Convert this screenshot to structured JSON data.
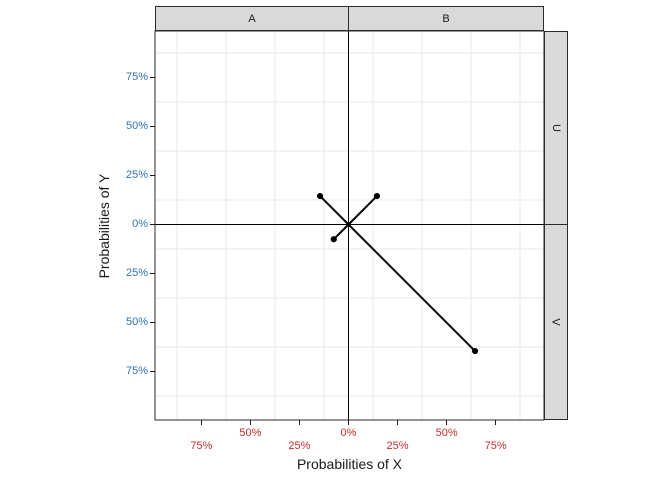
{
  "axis_titles": {
    "x": "Probabilities of X",
    "y": "Probabilities of Y"
  },
  "strips": {
    "top": [
      "A",
      "B"
    ],
    "right": [
      "U",
      "V"
    ]
  },
  "chart_data": {
    "type": "scatter",
    "title": "",
    "xlabel": "Probabilities of X",
    "ylabel": "Probabilities of Y",
    "xlim": [
      -99,
      99
    ],
    "ylim": [
      -99,
      99
    ],
    "grid": "light gridlines every 25% offset at 12.5% (between major ticks)",
    "grid_breaks_pct": [
      -87.5,
      -62.5,
      -37.5,
      -12.5,
      12.5,
      37.5,
      62.5,
      87.5
    ],
    "legend": "none",
    "facets": {
      "top_columns": [
        "A",
        "B"
      ],
      "right_rows": [
        "U",
        "V"
      ],
      "note": "column split at x=0, row split at y=0, zero panel spacing"
    },
    "x_ticks": [
      {
        "value": -75,
        "label": "75%",
        "row": 2
      },
      {
        "value": -50,
        "label": "50%",
        "row": 1
      },
      {
        "value": -25,
        "label": "25%",
        "row": 2
      },
      {
        "value": 0,
        "label": "0%",
        "row": 1
      },
      {
        "value": 25,
        "label": "25%",
        "row": 2
      },
      {
        "value": 50,
        "label": "50%",
        "row": 1
      },
      {
        "value": 75,
        "label": "75%",
        "row": 2
      }
    ],
    "y_ticks": [
      {
        "value": 75,
        "label": "75%"
      },
      {
        "value": 50,
        "label": "50%"
      },
      {
        "value": 25,
        "label": "25%"
      },
      {
        "value": 0,
        "label": "0%"
      },
      {
        "value": -25,
        "label": "25%"
      },
      {
        "value": -50,
        "label": "50%"
      },
      {
        "value": -75,
        "label": "75%"
      }
    ],
    "series": [
      {
        "name": "origin-segments",
        "style": "black segment from (0,0) to each point with filled endpoint dot",
        "points": [
          {
            "x": -14.5,
            "y": 14.5
          },
          {
            "x": 14.5,
            "y": 14.5
          },
          {
            "x": -7.5,
            "y": -7.5
          },
          {
            "x": 64.5,
            "y": -64.5
          }
        ]
      }
    ],
    "colors": {
      "x_tick_text": "#C62F2E",
      "y_tick_text": "#2E74B5",
      "axis_title_text": "#1a1a1a",
      "grid": "#e7e7e7",
      "zero_line": "#000000",
      "panel_border": "#2a2a2a",
      "tick_mark": "#1a1a1a",
      "strip_fill": "#d9d9d9",
      "strip_border": "#2a2a2a",
      "strip_text": "#1a1a1a",
      "segment": "#000000",
      "point": "#000000",
      "panel_background": "#ffffff"
    }
  }
}
